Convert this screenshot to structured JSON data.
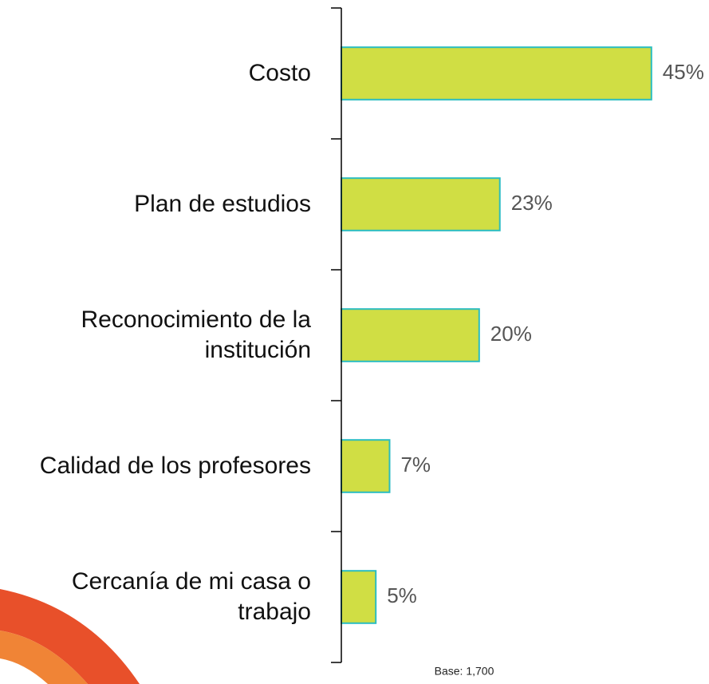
{
  "chart_data": {
    "type": "bar",
    "orientation": "horizontal",
    "categories": [
      "Costo",
      "Plan de estudios",
      "Reconocimiento de la\ninstitución",
      "Calidad de los profesores",
      "Cercanía de mi casa o\ntrabajo"
    ],
    "values": [
      45,
      23,
      20,
      7,
      5
    ],
    "value_labels": [
      "45%",
      "23%",
      "20%",
      "7%",
      "5%"
    ],
    "color": "#d0de44",
    "edge_color": "#2bbcc0",
    "xlim": [
      0,
      50
    ],
    "footnote": "Base: 1,700"
  }
}
